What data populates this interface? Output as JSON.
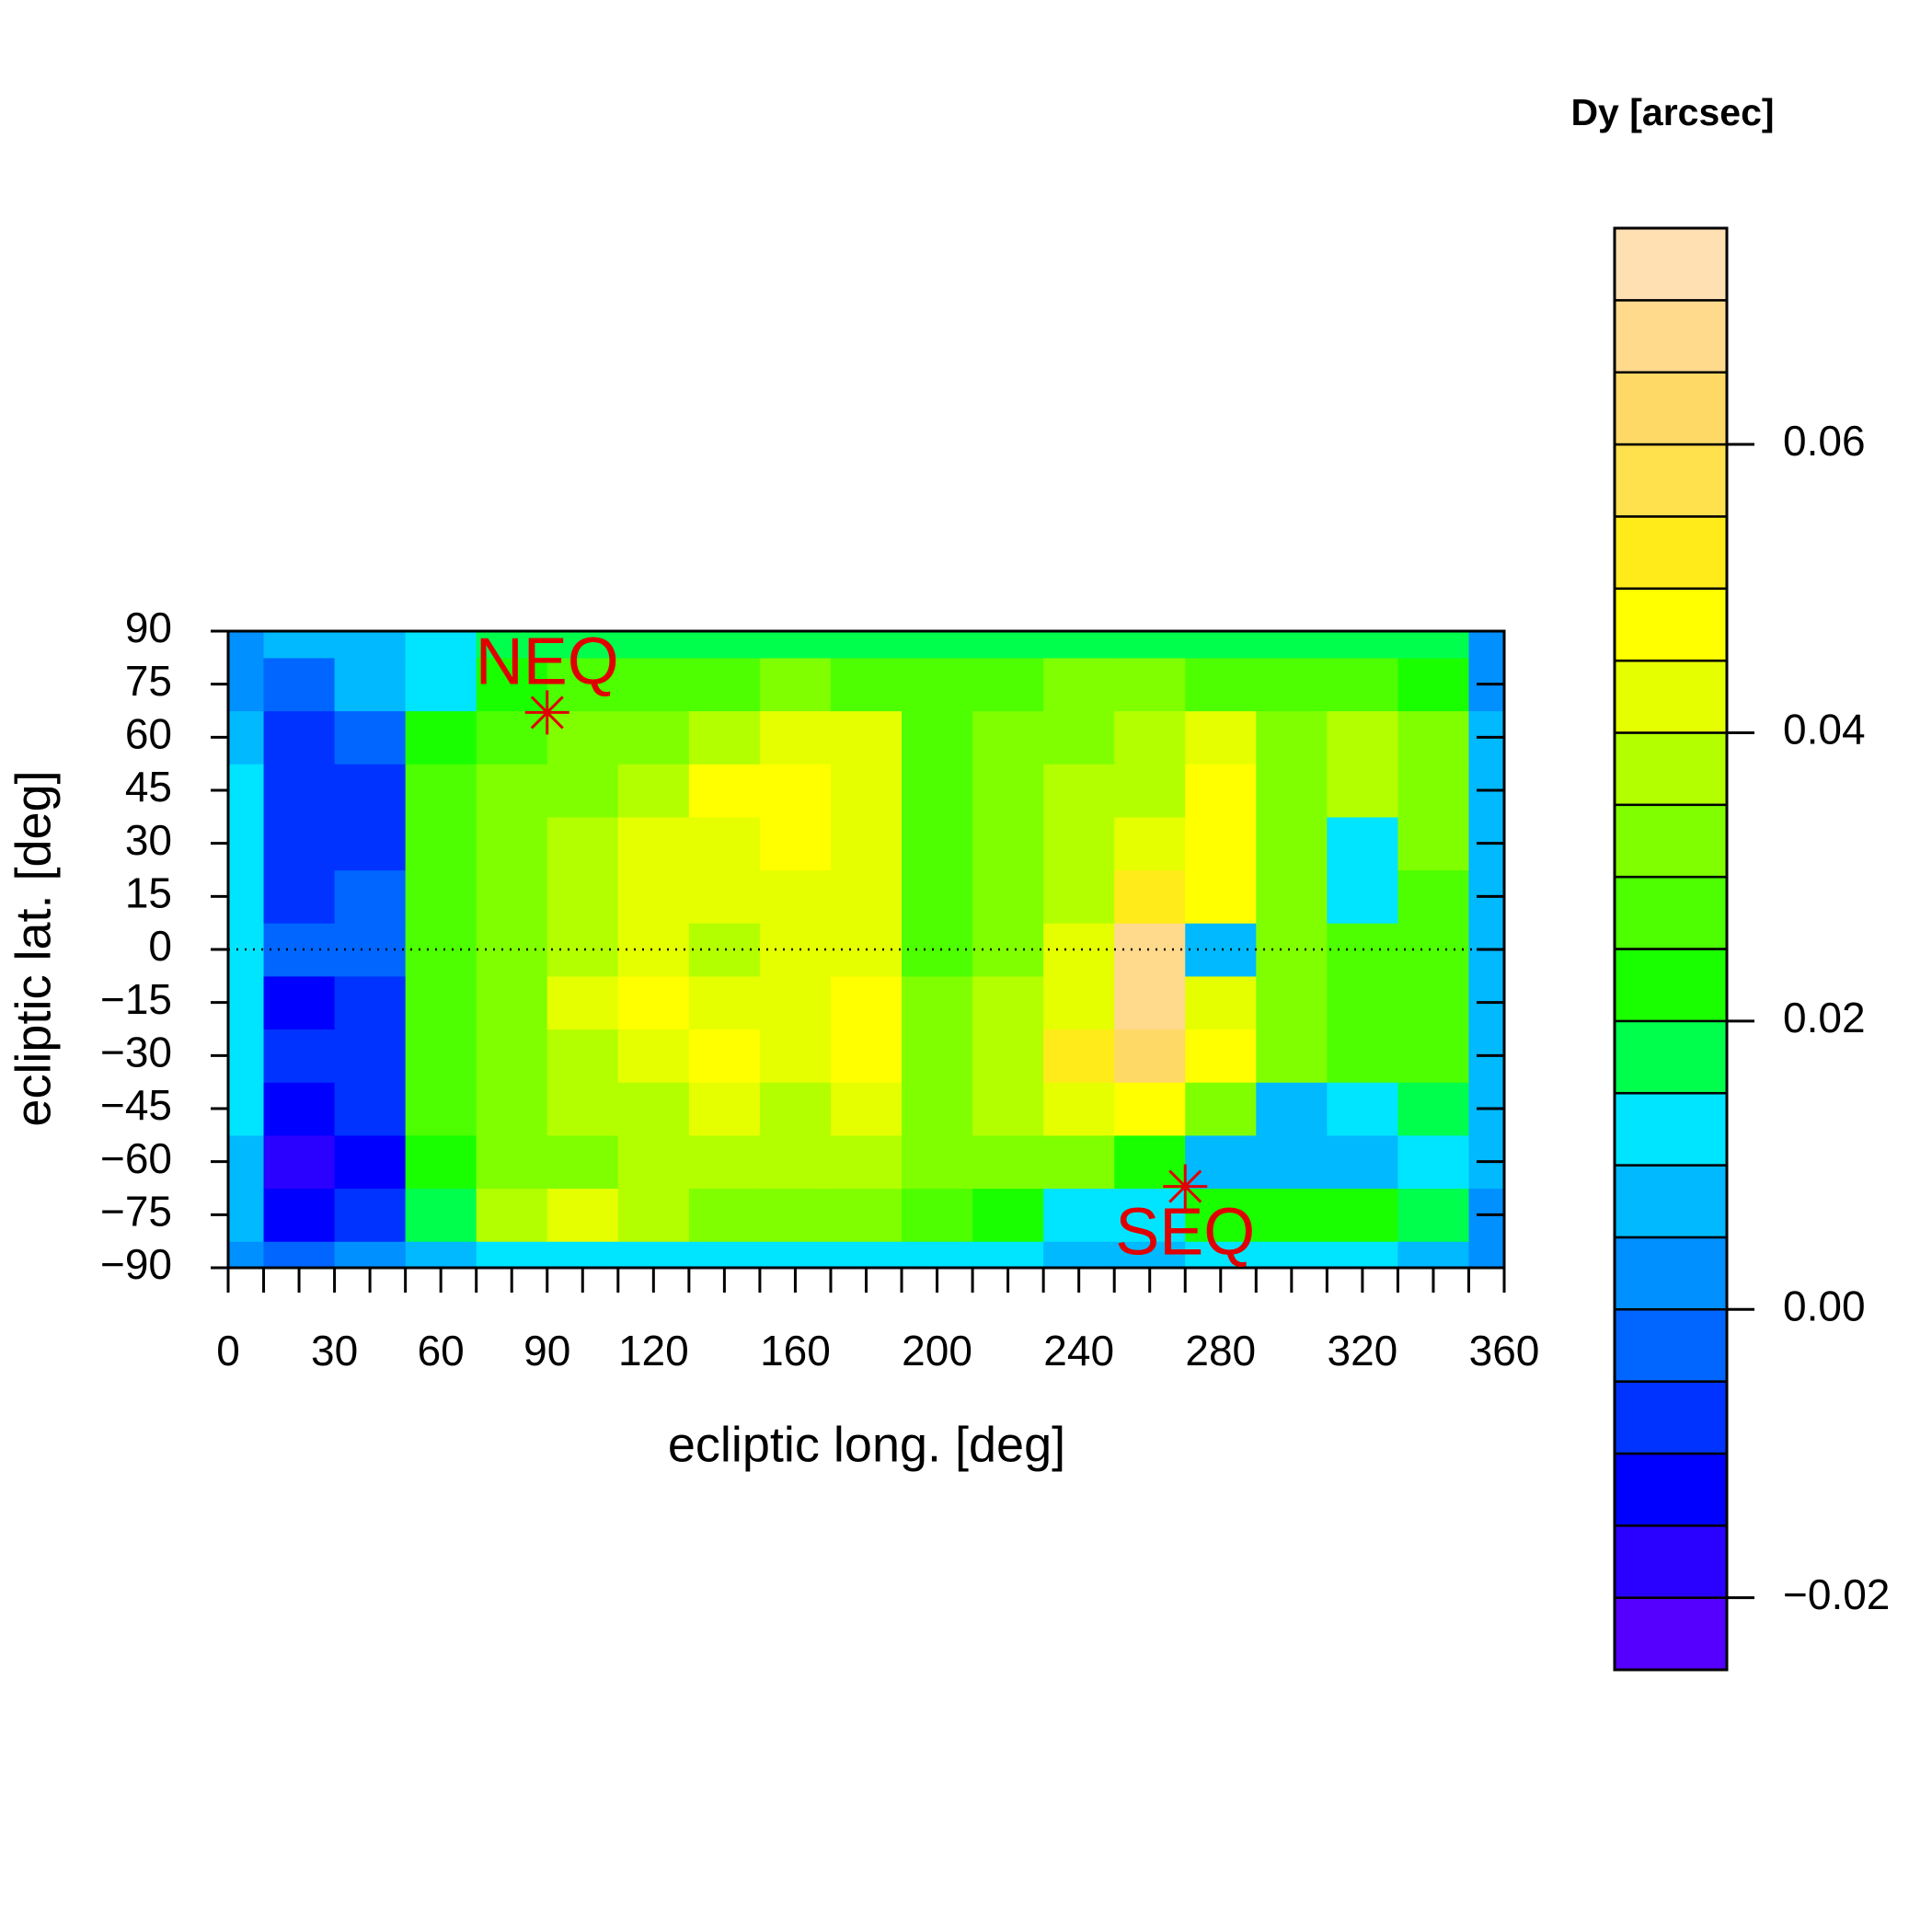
{
  "chart_data": {
    "type": "contour",
    "xlabel": "ecliptic long. [deg]",
    "ylabel": "ecliptic lat. [deg]",
    "colorbar_title": "Dy [arcsec]",
    "xlim": [
      0,
      360
    ],
    "ylim": [
      -90,
      90
    ],
    "xticks": [
      0,
      30,
      60,
      90,
      120,
      160,
      200,
      240,
      280,
      320,
      360
    ],
    "xminorticks": [
      0,
      10,
      20,
      30,
      40,
      50,
      60,
      70,
      80,
      90,
      100,
      110,
      120,
      130,
      140,
      150,
      160,
      170,
      180,
      190,
      200,
      210,
      220,
      230,
      240,
      250,
      260,
      270,
      280,
      290,
      300,
      310,
      320,
      330,
      340,
      350,
      360
    ],
    "yticks": [
      {
        "value": -90,
        "label": "−90"
      },
      {
        "value": -75,
        "label": "−75"
      },
      {
        "value": -60,
        "label": "−60"
      },
      {
        "value": -45,
        "label": "−45"
      },
      {
        "value": -30,
        "label": "−30"
      },
      {
        "value": -15,
        "label": "−15"
      },
      0,
      15,
      30,
      45,
      60,
      75,
      90
    ],
    "hline": 0,
    "x": [
      0,
      20,
      40,
      60,
      80,
      100,
      120,
      140,
      160,
      180,
      200,
      220,
      240,
      260,
      280,
      300,
      320,
      340,
      360
    ],
    "y": [
      -90,
      -75,
      -60,
      -45,
      -30,
      -15,
      0,
      15,
      30,
      45,
      60,
      75,
      90
    ],
    "z": [
      [
        0.002,
        -0.005,
        0.002,
        0.008,
        0.012,
        0.012,
        0.012,
        0.012,
        0.012,
        0.012,
        0.01,
        0.01,
        0.008,
        0.008,
        0.01,
        0.01,
        0.01,
        0.008,
        0.002
      ],
      [
        0.005,
        -0.012,
        -0.008,
        0.015,
        0.035,
        0.04,
        0.035,
        0.03,
        0.03,
        0.03,
        0.025,
        0.02,
        0.01,
        0.012,
        0.02,
        0.022,
        0.02,
        0.015,
        0.003
      ],
      [
        0.005,
        -0.018,
        -0.012,
        0.022,
        0.03,
        0.03,
        0.035,
        0.035,
        0.035,
        0.035,
        0.03,
        0.03,
        0.03,
        0.02,
        0.008,
        0.008,
        0.005,
        0.01,
        0.005
      ],
      [
        0.01,
        -0.015,
        -0.01,
        0.025,
        0.03,
        0.035,
        0.038,
        0.04,
        0.035,
        0.04,
        0.03,
        0.035,
        0.04,
        0.045,
        0.03,
        0.008,
        0.01,
        0.015,
        0.005
      ],
      [
        0.012,
        -0.01,
        -0.008,
        0.025,
        0.03,
        0.035,
        0.04,
        0.045,
        0.04,
        0.045,
        0.03,
        0.038,
        0.05,
        0.06,
        0.045,
        0.03,
        0.025,
        0.025,
        0.005
      ],
      [
        0.01,
        -0.012,
        -0.01,
        0.025,
        0.03,
        0.04,
        0.045,
        0.04,
        0.04,
        0.045,
        0.03,
        0.035,
        0.04,
        0.065,
        0.04,
        0.03,
        0.025,
        0.025,
        0.005
      ],
      [
        0.01,
        -0.005,
        -0.005,
        0.025,
        0.03,
        0.035,
        0.04,
        0.038,
        0.04,
        0.04,
        0.028,
        0.032,
        0.042,
        0.068,
        0.005,
        0.03,
        0.028,
        0.025,
        0.005
      ],
      [
        0.012,
        -0.008,
        -0.005,
        0.025,
        0.03,
        0.035,
        0.04,
        0.04,
        0.04,
        0.04,
        0.025,
        0.03,
        0.035,
        0.05,
        0.045,
        0.03,
        0.01,
        0.025,
        0.005
      ],
      [
        0.01,
        -0.01,
        -0.008,
        0.025,
        0.03,
        0.035,
        0.042,
        0.04,
        0.045,
        0.042,
        0.025,
        0.033,
        0.035,
        0.04,
        0.048,
        0.03,
        0.012,
        0.03,
        0.005
      ],
      [
        0.012,
        -0.01,
        -0.008,
        0.025,
        0.03,
        0.033,
        0.035,
        0.045,
        0.048,
        0.04,
        0.025,
        0.032,
        0.035,
        0.035,
        0.045,
        0.033,
        0.035,
        0.03,
        0.005
      ],
      [
        0.008,
        -0.008,
        -0.005,
        0.022,
        0.028,
        0.03,
        0.033,
        0.035,
        0.04,
        0.04,
        0.025,
        0.03,
        0.033,
        0.035,
        0.04,
        0.032,
        0.038,
        0.03,
        0.005
      ],
      [
        0.003,
        -0.005,
        0.005,
        0.012,
        0.02,
        0.028,
        0.028,
        0.028,
        0.03,
        0.028,
        0.025,
        0.028,
        0.03,
        0.03,
        0.028,
        0.028,
        0.025,
        0.02,
        0.003
      ],
      [
        0.002,
        0.005,
        0.008,
        0.012,
        0.015,
        0.018,
        0.018,
        0.018,
        0.018,
        0.018,
        0.015,
        0.018,
        0.018,
        0.018,
        0.018,
        0.018,
        0.018,
        0.015,
        0.002
      ]
    ],
    "levels": [
      -0.025,
      -0.02,
      -0.015,
      -0.01,
      -0.005,
      0,
      0.005,
      0.01,
      0.015,
      0.02,
      0.025,
      0.03,
      0.035,
      0.04,
      0.045,
      0.05,
      0.055,
      0.06,
      0.065,
      0.07,
      0.075
    ],
    "colors": [
      "#5500ff",
      "#2a00ff",
      "#0000ff",
      "#0033ff",
      "#0066ff",
      "#0090ff",
      "#00b9ff",
      "#00e5ff",
      "#00ff4d",
      "#1aff00",
      "#4dff00",
      "#80ff00",
      "#b3ff00",
      "#e6ff00",
      "#ffff00",
      "#ffeb1a",
      "#ffe04d",
      "#ffd966",
      "#ffd98c",
      "#ffe0b3"
    ],
    "colorbar_ticks": [
      {
        "value": -0.02,
        "label": "−0.02"
      },
      {
        "value": 0,
        "label": "0.00"
      },
      0.02,
      0.04,
      0.06
    ],
    "annotations": [
      {
        "text": "NEQ",
        "x": 90,
        "y": 67,
        "color": "#e00000"
      },
      {
        "text": "SEQ",
        "x": 270,
        "y": -67,
        "color": "#e00000"
      }
    ]
  }
}
